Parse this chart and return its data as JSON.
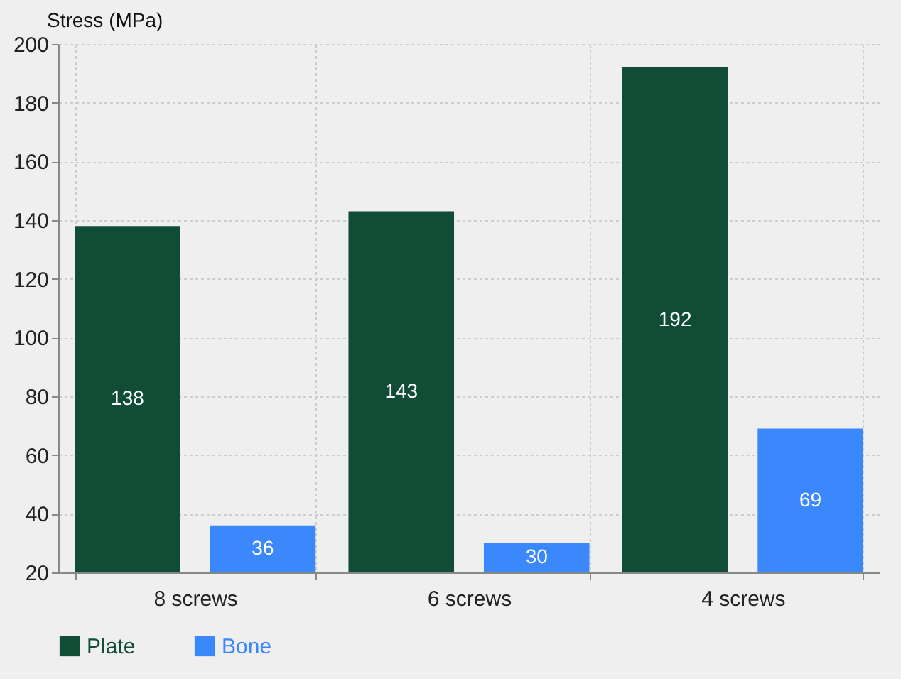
{
  "chart_data": {
    "type": "bar",
    "ylabel": "Stress (MPa)",
    "categories": [
      "8 screws",
      "6 screws",
      "4 screws"
    ],
    "series": [
      {
        "name": "Plate",
        "color": "#114d36",
        "values": [
          138,
          143,
          192
        ]
      },
      {
        "name": "Bone",
        "color": "#3b88fd",
        "values": [
          36,
          30,
          69
        ]
      }
    ],
    "ylim": [
      20,
      200
    ],
    "yticks": [
      20,
      40,
      60,
      80,
      100,
      120,
      140,
      160,
      180,
      200
    ],
    "grid": true,
    "legend": "bottom",
    "data_labels": true
  }
}
